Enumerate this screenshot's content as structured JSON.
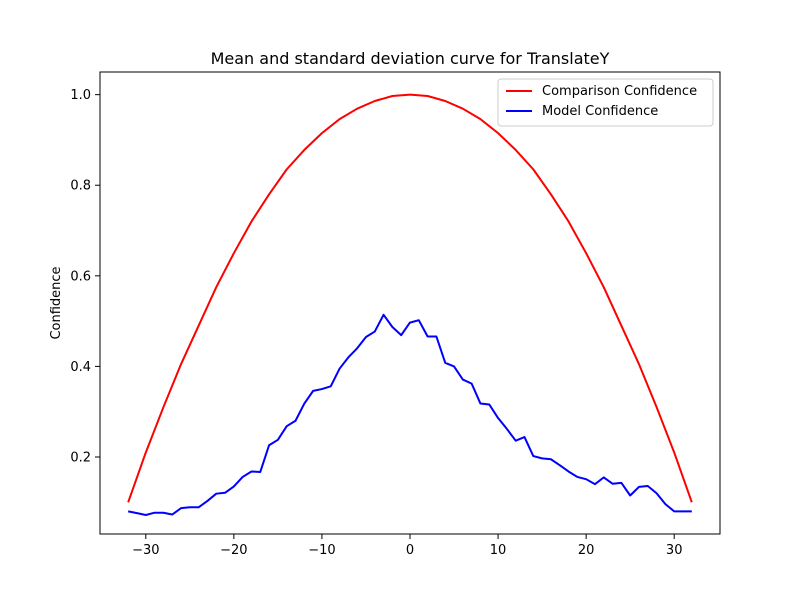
{
  "chart_data": {
    "type": "line",
    "title": "Mean and standard deviation curve for TranslateY",
    "xlabel": "",
    "ylabel": "Confidence",
    "xlim": [
      -35.2,
      35.2
    ],
    "ylim": [
      0.03,
      1.05
    ],
    "xticks": [
      -30,
      -20,
      -10,
      0,
      10,
      20,
      30
    ],
    "yticks": [
      0.2,
      0.4,
      0.6,
      0.8,
      1.0
    ],
    "xtick_labels": [
      "−30",
      "−20",
      "−10",
      "0",
      "10",
      "20",
      "30"
    ],
    "ytick_labels": [
      "0.2",
      "0.4",
      "0.6",
      "0.8",
      "1.0"
    ],
    "grid": false,
    "legend_position": "top-right",
    "series": [
      {
        "name": "Comparison Confidence",
        "color": "#ff0000",
        "x": [
          -32,
          -30,
          -28,
          -26,
          -24,
          -22,
          -20,
          -18,
          -16,
          -14,
          -12,
          -10,
          -8,
          -6,
          -4,
          -2,
          0,
          2,
          4,
          6,
          8,
          10,
          12,
          14,
          16,
          18,
          20,
          22,
          24,
          26,
          28,
          30,
          32
        ],
        "values": [
          0.1,
          0.21,
          0.31,
          0.405,
          0.49,
          0.575,
          0.65,
          0.72,
          0.78,
          0.835,
          0.878,
          0.915,
          0.946,
          0.969,
          0.986,
          0.997,
          1.0,
          0.997,
          0.986,
          0.969,
          0.946,
          0.915,
          0.878,
          0.835,
          0.78,
          0.72,
          0.65,
          0.575,
          0.49,
          0.405,
          0.31,
          0.21,
          0.1
        ]
      },
      {
        "name": "Model Confidence",
        "color": "#0000ff",
        "x": [
          -32,
          -31,
          -30,
          -29,
          -28,
          -27,
          -26,
          -25,
          -24,
          -23,
          -22,
          -21,
          -20,
          -19,
          -18,
          -17,
          -16,
          -15,
          -14,
          -13,
          -12,
          -11,
          -10,
          -9,
          -8,
          -7,
          -6,
          -5,
          -4,
          -3,
          -2,
          -1,
          0,
          0.05,
          1,
          2,
          3,
          4,
          5,
          6,
          7,
          8,
          9,
          10,
          11,
          12,
          13,
          14,
          15,
          16,
          17,
          18,
          19,
          20,
          21,
          22,
          23,
          24,
          25,
          26,
          27,
          28,
          29,
          30,
          31,
          32
        ],
        "values": [
          0.08,
          0.076,
          0.072,
          0.077,
          0.077,
          0.073,
          0.087,
          0.089,
          0.089,
          0.103,
          0.119,
          0.121,
          0.135,
          0.156,
          0.168,
          0.167,
          0.226,
          0.238,
          0.268,
          0.28,
          0.318,
          0.346,
          0.35,
          0.356,
          0.395,
          0.42,
          0.44,
          0.465,
          0.477,
          0.514,
          0.487,
          0.469,
          0.497,
          0.497,
          0.502,
          0.466,
          0.466,
          0.408,
          0.4,
          0.371,
          0.362,
          0.318,
          0.316,
          0.286,
          0.262,
          0.236,
          0.244,
          0.202,
          0.197,
          0.195,
          0.182,
          0.168,
          0.156,
          0.151,
          0.14,
          0.155,
          0.141,
          0.143,
          0.115,
          0.134,
          0.136,
          0.12,
          0.096,
          0.08,
          0.08,
          0.08
        ]
      }
    ]
  }
}
